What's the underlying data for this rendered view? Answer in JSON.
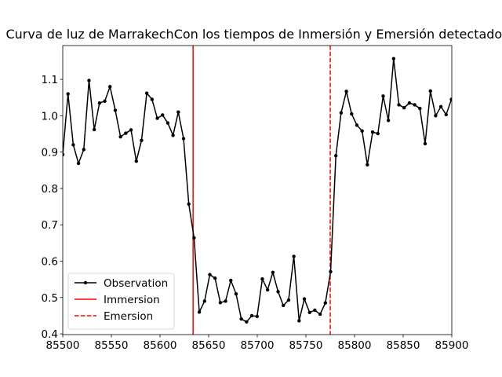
{
  "chart_data": {
    "type": "line",
    "title": "Curva de luz de MarrakechCon los tiempos de Inmersión y Emersión detectados",
    "xlim": [
      85500,
      85900
    ],
    "ylim": [
      0.398,
      1.193
    ],
    "xticks": [
      85500,
      85550,
      85600,
      85650,
      85700,
      85750,
      85800,
      85850,
      85900
    ],
    "yticks": [
      0.4,
      0.5,
      0.6,
      0.7,
      0.8,
      0.9,
      {
        "value": 1,
        "label": "1.0"
      },
      1.1
    ],
    "legend": "lower left",
    "series": [
      {
        "name": "Observation",
        "color": "#000000",
        "marker": true,
        "x": [
          85500,
          85505.4,
          85510.8,
          85516.2,
          85521.6,
          85527,
          85532.4,
          85537.8,
          85543.2,
          85548.6,
          85554,
          85559.4,
          85564.8,
          85570.2,
          85575.6,
          85581,
          85586.4,
          85591.8,
          85597.2,
          85602.6,
          85608,
          85613.4,
          85618.8,
          85624.2,
          85629.6,
          85635,
          85640.4,
          85645.8,
          85651.2,
          85656.6,
          85662,
          85667.4,
          85672.8,
          85678.2,
          85683.6,
          85689,
          85694.4,
          85699.8,
          85705.2,
          85710.6,
          85716,
          85721.4,
          85726.8,
          85732.2,
          85737.6,
          85743,
          85748.4,
          85753.8,
          85759.2,
          85764.6,
          85770,
          85775.4,
          85780.8,
          85786.2,
          85791.6,
          85797,
          85802.4,
          85807.8,
          85813.2,
          85818.6,
          85824,
          85829.4,
          85834.8,
          85840.2,
          85845.6,
          85851,
          85856.4,
          85861.8,
          85867.2,
          85872.6,
          85878,
          85883.4,
          85888.8,
          85894.2,
          85899.6
        ],
        "values": [
          0.893,
          1.06,
          0.92,
          0.869,
          0.907,
          1.097,
          0.962,
          1.035,
          1.04,
          1.08,
          1.015,
          0.942,
          0.952,
          0.961,
          0.875,
          0.932,
          1.062,
          1.045,
          0.993,
          1.002,
          0.98,
          0.946,
          1.01,
          0.937,
          0.757,
          0.664,
          0.46,
          0.49,
          0.563,
          0.553,
          0.486,
          0.49,
          0.547,
          0.51,
          0.441,
          0.433,
          0.45,
          0.448,
          0.551,
          0.521,
          0.569,
          0.516,
          0.478,
          0.493,
          0.613,
          0.436,
          0.496,
          0.459,
          0.465,
          0.454,
          0.485,
          0.571,
          0.89,
          1.008,
          1.067,
          1.005,
          0.974,
          0.958,
          0.865,
          0.955,
          0.951,
          1.054,
          0.987,
          1.157,
          1.03,
          1.022,
          1.035,
          1.03,
          1.02,
          0.923,
          1.068,
          1.0,
          1.025,
          1.003,
          1.045
        ]
      }
    ],
    "vlines": [
      {
        "name": "Immersion",
        "x": 85634,
        "color": "#ff0000",
        "style": "solid"
      },
      {
        "name": "Emersion",
        "x": 85775,
        "color": "#ff0000",
        "style": "dashed"
      }
    ]
  }
}
